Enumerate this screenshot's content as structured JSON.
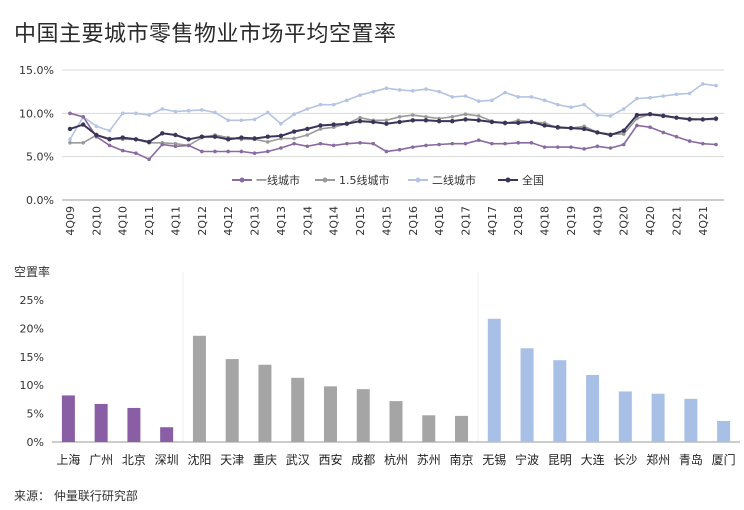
{
  "page": {
    "title": "中国主要城市零售物业市场平均空置率",
    "source": "来源： 仲量联行研究部"
  },
  "chart_data": [
    {
      "type": "line",
      "title": "",
      "xlabel": "",
      "ylabel": "",
      "ylim": [
        0,
        15
      ],
      "yticks": [
        "0.0%",
        "5.0%",
        "10.0%",
        "15.0%"
      ],
      "xtick_labels": [
        "4Q09",
        "2Q10",
        "4Q10",
        "2Q11",
        "4Q11",
        "2Q12",
        "4Q12",
        "2Q13",
        "4Q13",
        "2Q14",
        "4Q14",
        "2Q15",
        "4Q15",
        "2Q16",
        "4Q16",
        "2Q17",
        "4Q17",
        "2Q18",
        "4Q18",
        "2Q19",
        "4Q19",
        "2Q20",
        "4Q20",
        "2Q21",
        "4Q21"
      ],
      "x": [
        "4Q09",
        "1Q10",
        "2Q10",
        "3Q10",
        "4Q10",
        "1Q11",
        "2Q11",
        "3Q11",
        "4Q11",
        "1Q12",
        "2Q12",
        "3Q12",
        "4Q12",
        "1Q13",
        "2Q13",
        "3Q13",
        "4Q13",
        "1Q14",
        "2Q14",
        "3Q14",
        "4Q14",
        "1Q15",
        "2Q15",
        "3Q15",
        "4Q15",
        "1Q16",
        "2Q16",
        "3Q16",
        "4Q16",
        "1Q17",
        "2Q17",
        "3Q17",
        "4Q17",
        "1Q18",
        "2Q18",
        "3Q18",
        "4Q18",
        "1Q19",
        "2Q19",
        "3Q19",
        "4Q19",
        "1Q20",
        "2Q20",
        "3Q20",
        "4Q20",
        "1Q21",
        "2Q21",
        "3Q21",
        "4Q21",
        "1Q22"
      ],
      "legend_position": "bottom-center",
      "grid": true,
      "series": [
        {
          "name": "一线城市",
          "color": "#8a6aa0",
          "values": [
            10.0,
            9.6,
            7.3,
            6.3,
            5.7,
            5.4,
            4.7,
            6.4,
            6.2,
            6.3,
            5.6,
            5.6,
            5.6,
            5.6,
            5.4,
            5.6,
            6.0,
            6.5,
            6.2,
            6.5,
            6.3,
            6.5,
            6.6,
            6.5,
            5.6,
            5.8,
            6.1,
            6.3,
            6.4,
            6.5,
            6.5,
            6.9,
            6.5,
            6.5,
            6.6,
            6.6,
            6.1,
            6.1,
            6.1,
            5.9,
            6.2,
            6.0,
            6.4,
            8.6,
            8.4,
            7.8,
            7.3,
            6.8,
            6.5,
            6.4
          ]
        },
        {
          "name": "1.5线城市",
          "color": "#9a9a9a",
          "values": [
            6.6,
            6.6,
            7.5,
            7.1,
            7.0,
            7.0,
            6.6,
            6.6,
            6.5,
            6.3,
            7.2,
            7.5,
            7.2,
            7.0,
            7.0,
            6.7,
            7.1,
            7.1,
            7.5,
            8.2,
            8.4,
            8.8,
            9.5,
            9.2,
            9.2,
            9.6,
            9.8,
            9.6,
            9.4,
            9.6,
            9.9,
            9.7,
            9.1,
            8.8,
            9.2,
            9.0,
            8.9,
            8.3,
            8.3,
            8.5,
            7.8,
            7.6,
            7.6,
            9.4,
            9.9,
            9.8,
            9.5,
            9.4,
            9.3,
            9.3
          ]
        },
        {
          "name": "二线城市",
          "color": "#b4c4e2",
          "values": [
            7.0,
            9.6,
            8.5,
            8.0,
            10.0,
            10.0,
            9.8,
            10.5,
            10.2,
            10.3,
            10.4,
            10.1,
            9.2,
            9.2,
            9.3,
            10.1,
            8.8,
            9.9,
            10.5,
            11.0,
            11.0,
            11.5,
            12.1,
            12.5,
            12.9,
            12.7,
            12.6,
            12.8,
            12.5,
            11.9,
            12.0,
            11.4,
            11.5,
            12.4,
            11.9,
            11.9,
            11.5,
            11.0,
            10.7,
            11.0,
            9.8,
            9.7,
            10.5,
            11.7,
            11.8,
            12.0,
            12.2,
            12.3,
            13.4,
            13.2
          ]
        },
        {
          "name": "全国",
          "color": "#3a3558",
          "values": [
            8.2,
            8.7,
            7.5,
            7.0,
            7.2,
            7.0,
            6.7,
            7.7,
            7.5,
            7.0,
            7.3,
            7.3,
            7.0,
            7.2,
            7.1,
            7.3,
            7.4,
            7.9,
            8.2,
            8.6,
            8.7,
            8.8,
            9.1,
            9.0,
            8.8,
            9.0,
            9.2,
            9.2,
            9.1,
            9.1,
            9.3,
            9.2,
            9.0,
            8.9,
            8.9,
            9.0,
            8.6,
            8.4,
            8.3,
            8.2,
            7.8,
            7.5,
            8.0,
            9.8,
            9.9,
            9.7,
            9.5,
            9.3,
            9.3,
            9.4
          ]
        }
      ]
    },
    {
      "type": "bar",
      "title": "",
      "ylabel": "空置率",
      "xlabel": "",
      "ylim": [
        0,
        25
      ],
      "yticks": [
        "0%",
        "5%",
        "10%",
        "15%",
        "20%",
        "25%"
      ],
      "categories": [
        "上海",
        "广州",
        "北京",
        "深圳",
        "沈阳",
        "天津",
        "重庆",
        "武汉",
        "西安",
        "成都",
        "杭州",
        "苏州",
        "南京",
        "无锡",
        "宁波",
        "昆明",
        "大连",
        "长沙",
        "郑州",
        "青岛",
        "厦门"
      ],
      "values": [
        8.2,
        6.7,
        6.0,
        2.6,
        18.7,
        14.6,
        13.6,
        11.3,
        9.8,
        9.3,
        7.2,
        4.7,
        4.6,
        21.7,
        16.5,
        14.4,
        11.8,
        8.9,
        8.5,
        7.6,
        3.7
      ],
      "group_colors": {
        "一线城市": "#8a5ea4",
        "1.5线城市": "#a5a5a5",
        "二线城市": "#a9c0e6"
      },
      "groups": [
        "一线城市",
        "一线城市",
        "一线城市",
        "一线城市",
        "1.5线城市",
        "1.5线城市",
        "1.5线城市",
        "1.5线城市",
        "1.5线城市",
        "1.5线城市",
        "1.5线城市",
        "1.5线城市",
        "1.5线城市",
        "二线城市",
        "二线城市",
        "二线城市",
        "二线城市",
        "二线城市",
        "二线城市",
        "二线城市",
        "二线城市"
      ]
    }
  ]
}
